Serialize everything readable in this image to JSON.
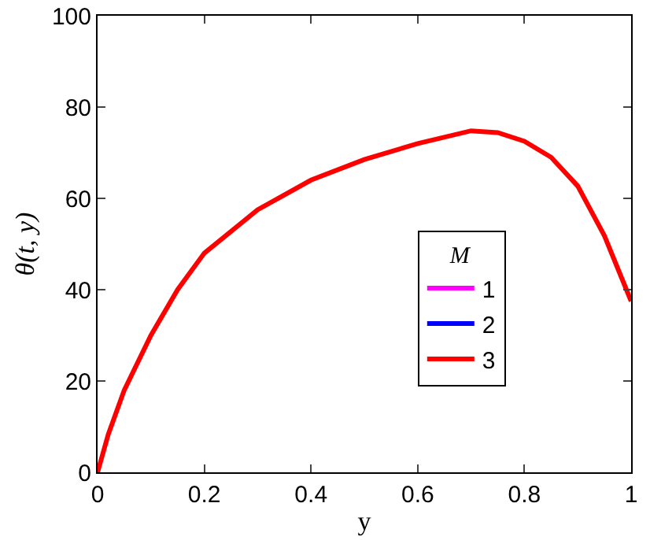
{
  "chart_data": {
    "type": "line",
    "xlabel": "y",
    "ylabel": "θ(t, y)",
    "legend_title": "M",
    "x": [
      0,
      0.02,
      0.05,
      0.1,
      0.15,
      0.2,
      0.3,
      0.4,
      0.5,
      0.6,
      0.7,
      0.75,
      0.8,
      0.85,
      0.9,
      0.95,
      1
    ],
    "series": [
      {
        "name": "1",
        "color": "#ff00ff",
        "values": [
          null,
          null,
          null,
          null,
          null,
          null,
          null,
          null,
          null,
          null,
          null,
          null,
          null,
          null,
          null,
          null,
          null
        ]
      },
      {
        "name": "2",
        "color": "#0000ff",
        "values": [
          null,
          null,
          null,
          null,
          null,
          null,
          null,
          null,
          null,
          null,
          null,
          null,
          null,
          null,
          null,
          null,
          null
        ]
      },
      {
        "name": "3",
        "color": "#ff0000",
        "values": [
          0,
          8.3,
          18,
          30,
          40,
          48,
          57.5,
          64,
          68.5,
          72,
          74.8,
          74.4,
          72.5,
          69,
          62.7,
          51.8,
          37.5
        ]
      }
    ],
    "xlim": [
      0,
      1
    ],
    "xticks": [
      0,
      0.2,
      0.4,
      0.6,
      0.8,
      1
    ],
    "ylim": [
      0,
      100
    ],
    "yticks": [
      0,
      20,
      40,
      60,
      80,
      100
    ],
    "grid": false,
    "legend": "right",
    "marker": "none",
    "line_style": "solid"
  }
}
